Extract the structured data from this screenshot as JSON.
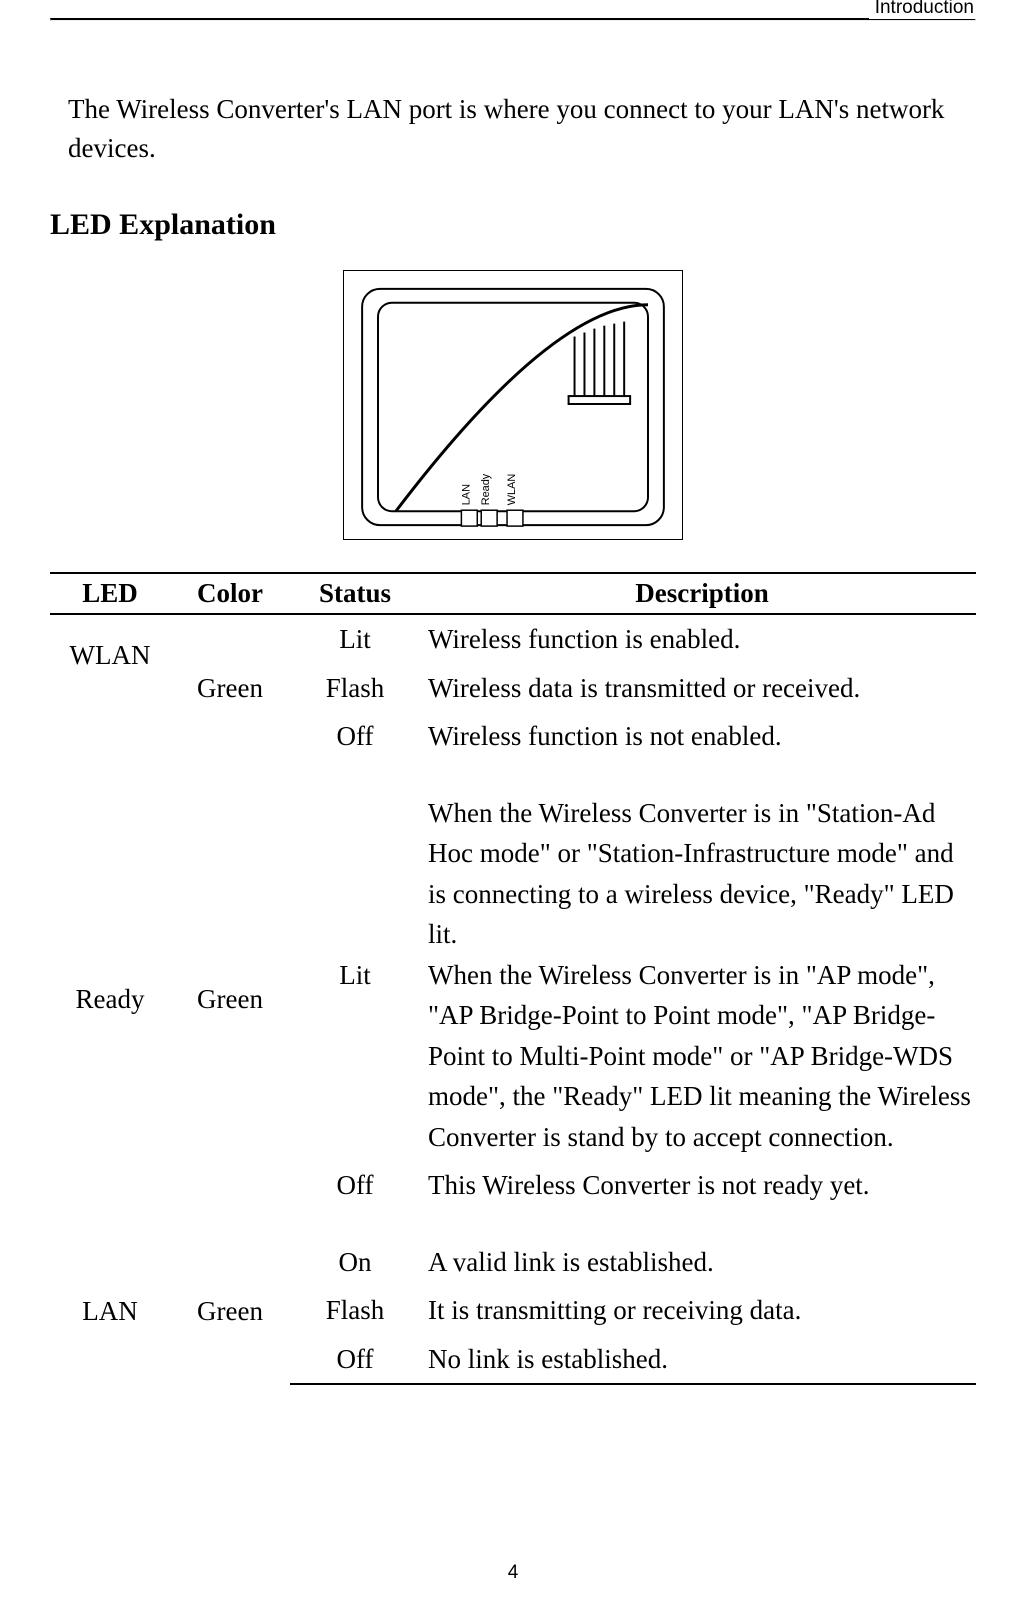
{
  "header": {
    "label": "Introduction"
  },
  "intro": "The Wireless Converter's LAN port is where you connect to your LAN's network devices.",
  "section_title": "LED Explanation",
  "figure": {
    "labels": [
      "LAN",
      "Ready",
      "WLAN"
    ]
  },
  "table": {
    "columns": [
      "LED",
      "Color",
      "Status",
      "Description"
    ],
    "groups": [
      {
        "led": "WLAN",
        "color": "Green",
        "rows": [
          {
            "status": "Lit",
            "desc": "Wireless function is enabled."
          },
          {
            "status": "Flash",
            "desc": "Wireless data is transmitted or received."
          },
          {
            "status": "Off",
            "desc": "Wireless function is not enabled."
          }
        ]
      },
      {
        "led": "Ready",
        "color": "Green",
        "rows": [
          {
            "status": "Lit",
            "desc": "When the Wireless Converter is in \"Station-Ad Hoc mode\" or \"Station-Infrastructure mode\" and is connecting to a wireless device, \"Ready\" LED lit.\nWhen the Wireless Converter is in \"AP mode\", \"AP Bridge-Point to Point mode\", \"AP Bridge-Point to Multi-Point mode\" or \"AP Bridge-WDS mode\", the \"Ready\" LED lit meaning the Wireless Converter is stand by to accept connection."
          },
          {
            "status": "Off",
            "desc": "This Wireless Converter is not ready yet."
          }
        ]
      },
      {
        "led": "LAN",
        "color": "Green",
        "rows": [
          {
            "status": "On",
            "desc": "A valid link is established."
          },
          {
            "status": "Flash",
            "desc": "It is transmitting or receiving data."
          },
          {
            "status": "Off",
            "desc": "No link is established."
          }
        ]
      }
    ]
  },
  "page_number": "4",
  "colors": {
    "text": "#000000",
    "background": "#ffffff",
    "border": "#000000"
  },
  "typography": {
    "body_font": "Times New Roman",
    "header_font": "Arial",
    "body_size_pt": 20,
    "title_size_pt": 22
  }
}
